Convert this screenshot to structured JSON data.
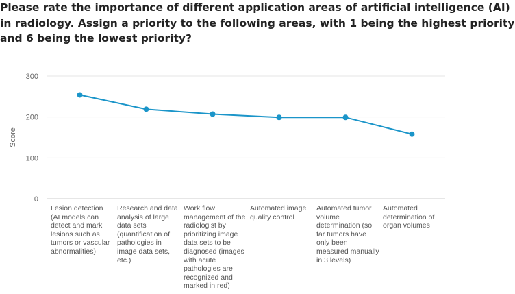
{
  "title_lines": [
    "Please rate the importance of different application areas of artificial intelligence (AI)",
    "in radiology. Assign a priority to the following areas, with 1 being the highest priority",
    "and 6 being the lowest priority?"
  ],
  "colors": {
    "line": "#1b95c9",
    "grid": "#e6e6e6",
    "axis": "#cccccc"
  },
  "chart_data": {
    "type": "line",
    "title": "Please rate the importance of different application areas of artificial intelligence (AI) in radiology. Assign a priority to the following areas, with 1 being the highest priority and 6 being the lowest priority?",
    "xlabel": "",
    "ylabel": "Score",
    "ylim": [
      0,
      300
    ],
    "yticks": [
      0,
      100,
      200,
      300
    ],
    "grid": true,
    "categories": [
      "Lesion detection (AI models can detect and mark lesions such as tumors or vascular abnormalities)",
      "Research and data analysis of large data sets (quantification of pathologies in image data sets, etc.)",
      "Work flow management of the radiologist by prioritizing image data sets to be diagnosed (images with acute pathologies are recognized and marked in red)",
      "Automated image quality control",
      "Automated tumor volume determination (so far tumors have only been measured manually in 3 levels)",
      "Automated determination of organ volumes"
    ],
    "series": [
      {
        "name": "Score",
        "values": [
          254,
          219,
          207,
          199,
          199,
          158
        ]
      }
    ]
  }
}
